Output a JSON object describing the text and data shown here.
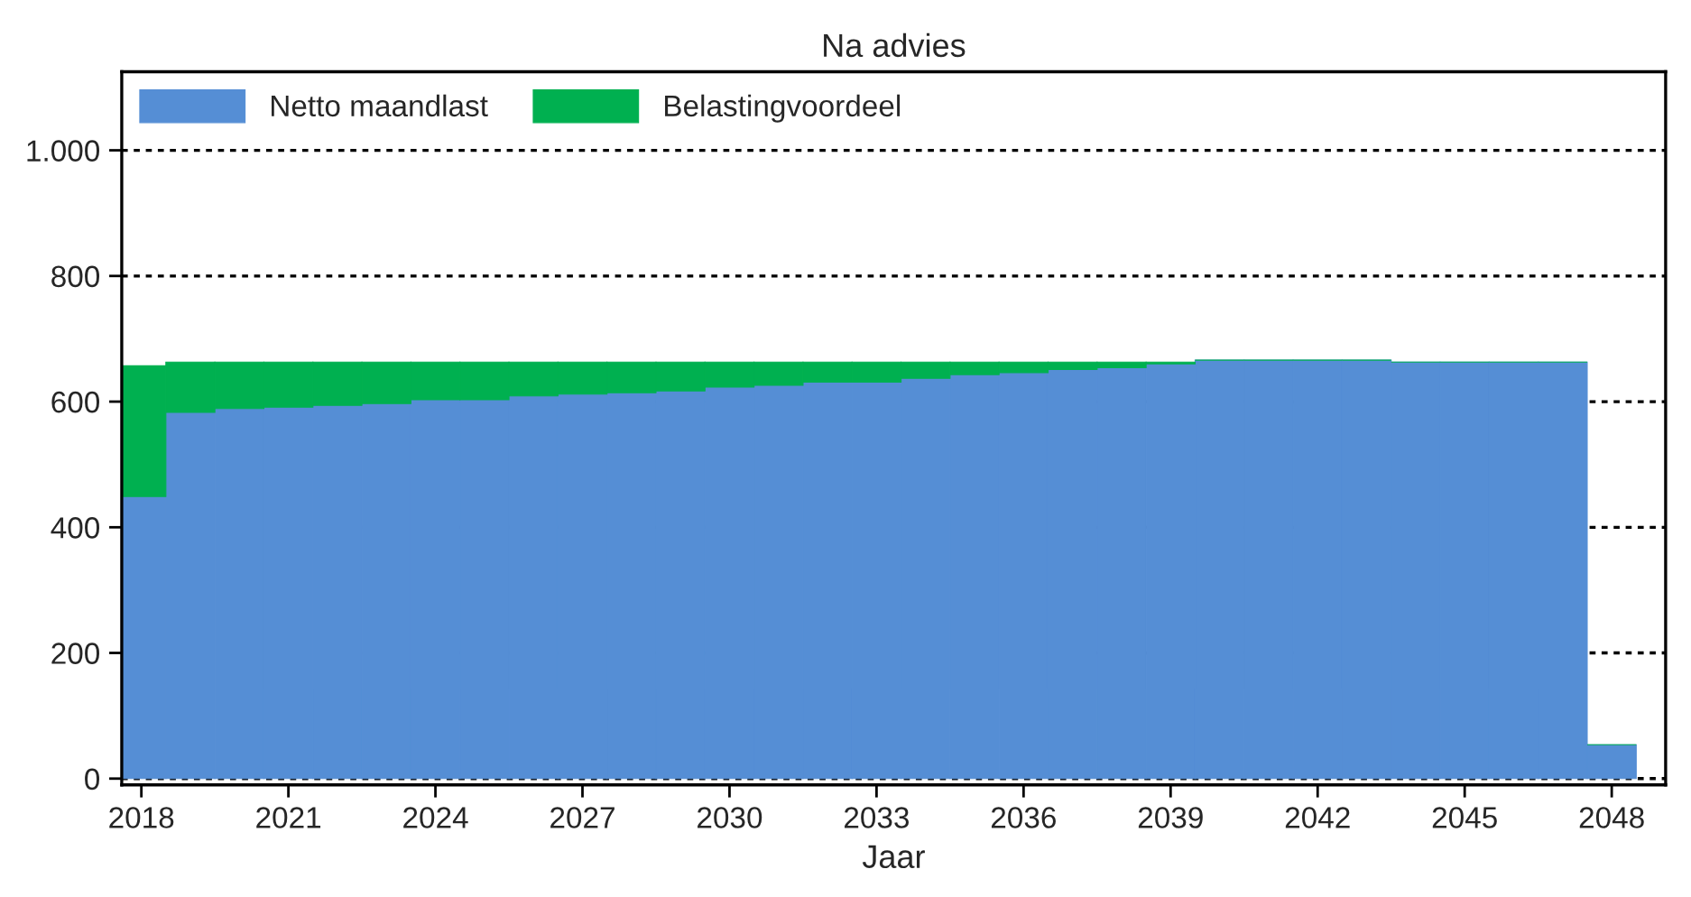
{
  "chart_data": {
    "type": "bar",
    "title": "Na advies",
    "xlabel": "Jaar",
    "stacked": true,
    "x": [
      2018,
      2019,
      2020,
      2021,
      2022,
      2023,
      2024,
      2025,
      2026,
      2027,
      2028,
      2029,
      2030,
      2031,
      2032,
      2033,
      2034,
      2035,
      2036,
      2037,
      2038,
      2039,
      2040,
      2041,
      2042,
      2043,
      2044,
      2045,
      2046,
      2047,
      2048
    ],
    "series": [
      {
        "name": "Netto maandlast",
        "color": "#558ed5",
        "values": [
          449,
          583,
          589,
          591,
          594,
          597,
          603,
          603,
          609,
          612,
          614,
          617,
          623,
          626,
          631,
          631,
          637,
          643,
          646,
          651,
          654,
          660,
          666,
          666,
          666,
          666,
          663,
          663,
          663,
          663,
          54
        ]
      },
      {
        "name": "Belastingvoordeel",
        "color": "#00b050",
        "values": [
          208,
          80,
          74,
          72,
          69,
          66,
          60,
          60,
          54,
          51,
          49,
          46,
          40,
          37,
          32,
          32,
          26,
          20,
          17,
          12,
          9,
          3,
          0,
          0,
          0,
          0,
          0,
          0,
          0,
          0,
          0
        ]
      }
    ],
    "xlim": [
      2017.6,
      2049.1
    ],
    "xticks": [
      2018,
      2021,
      2024,
      2027,
      2030,
      2033,
      2036,
      2039,
      2042,
      2045,
      2048
    ],
    "ylim": [
      -10,
      1125
    ],
    "yticks": [
      0,
      200,
      400,
      600,
      800,
      {
        "value": 1000,
        "label": "1.000"
      }
    ],
    "grid": "y",
    "legend": "top left"
  }
}
